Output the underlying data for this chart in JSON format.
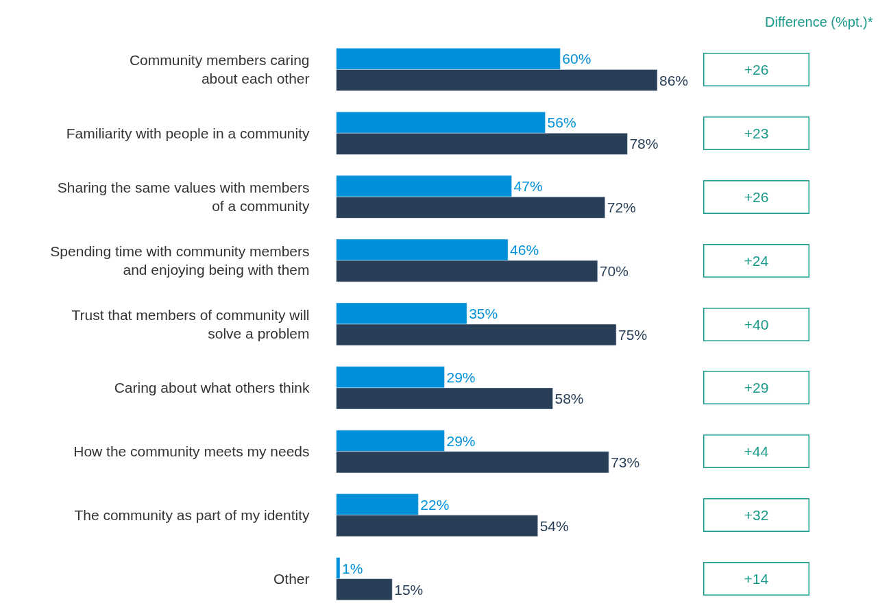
{
  "chart_data": {
    "type": "bar",
    "orientation": "horizontal",
    "categories": [
      "Community members caring\nabout each other",
      "Familiarity with people in a community",
      "Sharing the same values with members\nof a community",
      "Spending time with community members\nand enjoying being with them",
      "Trust that members of community will\nsolve a problem",
      "Caring about what others think",
      "How the community meets my needs",
      "The community as part of my identity",
      "Other"
    ],
    "series": [
      {
        "color": "#0090d9",
        "values": [
          60,
          56,
          47,
          46,
          35,
          29,
          29,
          22,
          1
        ],
        "value_labels": [
          "60%",
          "56%",
          "47%",
          "46%",
          "35%",
          "29%",
          "29%",
          "22%",
          "1%"
        ]
      },
      {
        "color": "#283f57",
        "values": [
          86,
          78,
          72,
          70,
          75,
          58,
          73,
          54,
          15
        ],
        "value_labels": [
          "86%",
          "78%",
          "72%",
          "70%",
          "75%",
          "58%",
          "73%",
          "54%",
          "15%"
        ]
      }
    ],
    "annotations": [
      "Difference (%pt.)*",
      "+26",
      "+23",
      "+26",
      "+24",
      "+40",
      "+29",
      "+44",
      "+32",
      "+14"
    ],
    "legend": false
  }
}
